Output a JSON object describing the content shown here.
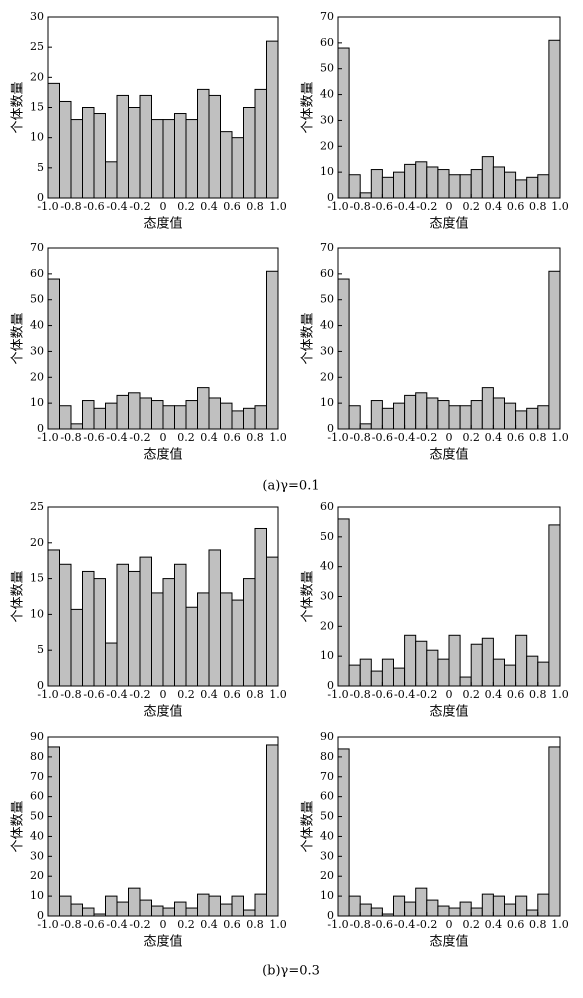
{
  "chart_data": [
    {
      "type": "histogram",
      "xlabel": "态度值",
      "ylabel": "个体数量",
      "color": "#c0c0c0",
      "bins": [
        -1,
        -0.9,
        -0.8,
        -0.7,
        -0.6,
        -0.5,
        -0.4,
        -0.3,
        -0.2,
        -0.1,
        0,
        0.1,
        0.2,
        0.3,
        0.4,
        0.5,
        0.6,
        0.7,
        0.8,
        0.9,
        1
      ],
      "values": [
        19,
        16,
        13,
        15,
        14,
        6,
        17,
        15,
        17,
        13,
        13,
        14,
        13,
        18,
        17,
        11,
        10,
        15,
        18,
        26
      ],
      "xlim": [
        -1,
        1
      ],
      "ylim": [
        0,
        30
      ],
      "xticks": [
        {
          "value": -1,
          "label": "-1.0"
        },
        -0.8,
        -0.6,
        -0.4,
        -0.2,
        0,
        0.2,
        0.4,
        0.6,
        0.8,
        {
          "value": 1,
          "label": "1.0"
        }
      ],
      "yticks": [
        0,
        5,
        10,
        15,
        20,
        25,
        30
      ]
    },
    {
      "type": "histogram",
      "xlabel": "态度值",
      "ylabel": "个体数量",
      "color": "#c0c0c0",
      "bins": [
        -1,
        -0.9,
        -0.8,
        -0.7,
        -0.6,
        -0.5,
        -0.4,
        -0.3,
        -0.2,
        -0.1,
        0,
        0.1,
        0.2,
        0.3,
        0.4,
        0.5,
        0.6,
        0.7,
        0.8,
        0.9,
        1
      ],
      "values": [
        58,
        9,
        2,
        11,
        8,
        10,
        13,
        14,
        12,
        11,
        9,
        9,
        11,
        16,
        12,
        10,
        7,
        8,
        9,
        61
      ],
      "xlim": [
        -1,
        1
      ],
      "ylim": [
        0,
        70
      ],
      "xticks": [
        {
          "value": -1,
          "label": "-1.0"
        },
        -0.8,
        -0.6,
        -0.4,
        -0.2,
        0,
        0.2,
        0.4,
        0.6,
        0.8,
        {
          "value": 1,
          "label": "1.0"
        }
      ],
      "yticks": [
        0,
        10,
        20,
        30,
        40,
        50,
        60,
        70
      ]
    },
    {
      "type": "histogram",
      "xlabel": "态度值",
      "ylabel": "个体数量",
      "color": "#c0c0c0",
      "bins": [
        -1,
        -0.9,
        -0.8,
        -0.7,
        -0.6,
        -0.5,
        -0.4,
        -0.3,
        -0.2,
        -0.1,
        0,
        0.1,
        0.2,
        0.3,
        0.4,
        0.5,
        0.6,
        0.7,
        0.8,
        0.9,
        1
      ],
      "values": [
        58,
        9,
        2,
        11,
        8,
        10,
        13,
        14,
        12,
        11,
        9,
        9,
        11,
        16,
        12,
        10,
        7,
        8,
        9,
        61
      ],
      "xlim": [
        -1,
        1
      ],
      "ylim": [
        0,
        70
      ],
      "xticks": [
        {
          "value": -1,
          "label": "-1.0"
        },
        -0.8,
        -0.6,
        -0.4,
        -0.2,
        0,
        0.2,
        0.4,
        0.6,
        0.8,
        {
          "value": 1,
          "label": "1.0"
        }
      ],
      "yticks": [
        0,
        10,
        20,
        30,
        40,
        50,
        60,
        70
      ]
    },
    {
      "type": "histogram",
      "xlabel": "态度值",
      "ylabel": "个体数量",
      "color": "#c0c0c0",
      "bins": [
        -1,
        -0.9,
        -0.8,
        -0.7,
        -0.6,
        -0.5,
        -0.4,
        -0.3,
        -0.2,
        -0.1,
        0,
        0.1,
        0.2,
        0.3,
        0.4,
        0.5,
        0.6,
        0.7,
        0.8,
        0.9,
        1
      ],
      "values": [
        58,
        9,
        2,
        11,
        8,
        10,
        13,
        14,
        12,
        11,
        9,
        9,
        11,
        16,
        12,
        10,
        7,
        8,
        9,
        61
      ],
      "xlim": [
        -1,
        1
      ],
      "ylim": [
        0,
        70
      ],
      "xticks": [
        {
          "value": -1,
          "label": "-1.0"
        },
        -0.8,
        -0.6,
        -0.4,
        -0.2,
        0,
        0.2,
        0.4,
        0.6,
        0.8,
        {
          "value": 1,
          "label": "1.0"
        }
      ],
      "yticks": [
        0,
        10,
        20,
        30,
        40,
        50,
        60,
        70
      ]
    },
    {
      "type": "histogram",
      "xlabel": "态度值",
      "ylabel": "个体数量",
      "color": "#c0c0c0",
      "bins": [
        -1,
        -0.9,
        -0.8,
        -0.7,
        -0.6,
        -0.5,
        -0.4,
        -0.3,
        -0.2,
        -0.1,
        0,
        0.1,
        0.2,
        0.3,
        0.4,
        0.5,
        0.6,
        0.7,
        0.8,
        0.9,
        1
      ],
      "values": [
        19,
        17,
        10.7,
        16,
        15,
        6,
        17,
        16,
        18,
        13,
        15,
        17,
        11,
        13,
        19,
        13,
        12,
        15,
        22,
        18
      ],
      "xlim": [
        -1,
        1
      ],
      "ylim": [
        0,
        25
      ],
      "xticks": [
        {
          "value": -1,
          "label": "-1.0"
        },
        -0.8,
        -0.6,
        -0.4,
        -0.2,
        0,
        0.2,
        0.4,
        0.6,
        0.8,
        {
          "value": 1,
          "label": "1.0"
        }
      ],
      "yticks": [
        0,
        5,
        10,
        15,
        20,
        25
      ]
    },
    {
      "type": "histogram",
      "xlabel": "态度值",
      "ylabel": "个体数量",
      "color": "#c0c0c0",
      "bins": [
        -1,
        -0.9,
        -0.8,
        -0.7,
        -0.6,
        -0.5,
        -0.4,
        -0.3,
        -0.2,
        -0.1,
        0,
        0.1,
        0.2,
        0.3,
        0.4,
        0.5,
        0.6,
        0.7,
        0.8,
        0.9,
        1
      ],
      "values": [
        56,
        7,
        9,
        5,
        9,
        6,
        17,
        15,
        12,
        9,
        17,
        3,
        14,
        16,
        9,
        7,
        17,
        10,
        8,
        54
      ],
      "xlim": [
        -1,
        1
      ],
      "ylim": [
        0,
        60
      ],
      "xticks": [
        {
          "value": -1,
          "label": "-1.0"
        },
        -0.8,
        -0.6,
        -0.4,
        -0.2,
        0,
        0.2,
        0.4,
        0.6,
        0.8,
        {
          "value": 1,
          "label": "1.0"
        }
      ],
      "yticks": [
        0,
        10,
        20,
        30,
        40,
        50,
        60
      ]
    },
    {
      "type": "histogram",
      "xlabel": "态度值",
      "ylabel": "个体数量",
      "color": "#c0c0c0",
      "bins": [
        -1,
        -0.9,
        -0.8,
        -0.7,
        -0.6,
        -0.5,
        -0.4,
        -0.3,
        -0.2,
        -0.1,
        0,
        0.1,
        0.2,
        0.3,
        0.4,
        0.5,
        0.6,
        0.7,
        0.8,
        0.9,
        1
      ],
      "values": [
        85,
        10,
        6,
        4,
        1,
        10,
        7,
        14,
        8,
        5,
        4,
        7,
        4,
        11,
        10,
        6,
        10,
        3,
        11,
        86
      ],
      "xlim": [
        -1,
        1
      ],
      "ylim": [
        0,
        90
      ],
      "xticks": [
        {
          "value": -1,
          "label": "-1.0"
        },
        -0.8,
        -0.6,
        -0.4,
        -0.2,
        0,
        0.2,
        0.4,
        0.6,
        0.8,
        {
          "value": 1,
          "label": "1.0"
        }
      ],
      "yticks": [
        0,
        10,
        20,
        30,
        40,
        50,
        60,
        70,
        80,
        90
      ]
    },
    {
      "type": "histogram",
      "xlabel": "态度值",
      "ylabel": "个体数量",
      "color": "#c0c0c0",
      "bins": [
        -1,
        -0.9,
        -0.8,
        -0.7,
        -0.6,
        -0.5,
        -0.4,
        -0.3,
        -0.2,
        -0.1,
        0,
        0.1,
        0.2,
        0.3,
        0.4,
        0.5,
        0.6,
        0.7,
        0.8,
        0.9,
        1
      ],
      "values": [
        84,
        10,
        6,
        4,
        1,
        10,
        7,
        14,
        8,
        5,
        4,
        7,
        4,
        11,
        10,
        6,
        10,
        3,
        11,
        85
      ],
      "xlim": [
        -1,
        1
      ],
      "ylim": [
        0,
        90
      ],
      "xticks": [
        {
          "value": -1,
          "label": "-1.0"
        },
        -0.8,
        -0.6,
        -0.4,
        -0.2,
        0,
        0.2,
        0.4,
        0.6,
        0.8,
        {
          "value": 1,
          "label": "1.0"
        }
      ],
      "yticks": [
        0,
        10,
        20,
        30,
        40,
        50,
        60,
        70,
        80,
        90
      ]
    }
  ],
  "captions": [
    "(a)γ=0.1",
    "(b)γ=0.3"
  ]
}
